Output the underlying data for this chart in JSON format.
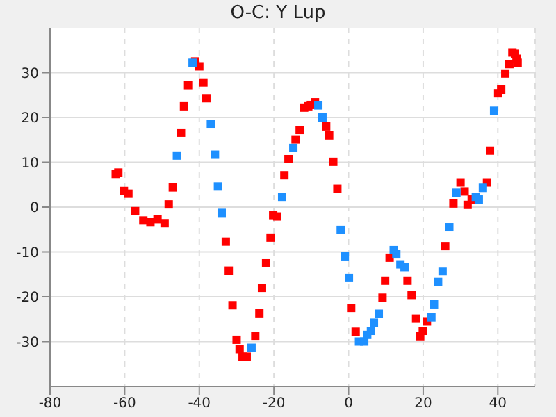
{
  "chart_data": {
    "type": "scatter",
    "title": "O-C: Y Lup",
    "xlim": [
      -80,
      50
    ],
    "ylim": [
      -40,
      40
    ],
    "xticks": [
      -80,
      -60,
      -40,
      -20,
      0,
      20,
      40
    ],
    "yticks": [
      -30,
      -20,
      -10,
      0,
      10,
      20,
      30
    ],
    "grid": true,
    "marker": "square",
    "series": [
      {
        "color": "#ff0000",
        "x": [
          -62.4,
          -61.7,
          -60.2,
          -59,
          -57.2,
          -55,
          -53.1,
          -51.2,
          -49.3,
          -48.2,
          -47.1,
          -44.9,
          -44.1,
          -43,
          -41.1,
          -40,
          -38.9,
          -38.1,
          -32.9,
          -32.1,
          -31.1,
          -30,
          -29.2,
          -28.4,
          -27.3,
          -25,
          -23.9,
          -23.2,
          -22.1,
          -20.9,
          -20.2,
          -19.1,
          -17.2,
          -16.1,
          -14.2,
          -13.1,
          -11.9,
          -10.8,
          -10.1,
          -9,
          -6,
          -5.2,
          -4.1,
          -3,
          0.7,
          1.9,
          9.1,
          9.8,
          11,
          15.8,
          16.9,
          18.1,
          19.2,
          19.9,
          21,
          25.9,
          28.1,
          30,
          31.1,
          31.9,
          33,
          37.1,
          37.9,
          40.1,
          40.9,
          42,
          43.1,
          43.9,
          44.6,
          45,
          45.3
        ],
        "values": [
          7.4,
          7.7,
          3.6,
          3,
          -0.9,
          -3,
          -3.3,
          -2.7,
          -3.6,
          0.6,
          4.4,
          16.6,
          22.5,
          27.2,
          32.5,
          31.4,
          27.8,
          24.3,
          -7.7,
          -14.2,
          -21.9,
          -29.6,
          -31.7,
          -33.4,
          -33.4,
          -28.7,
          -23.7,
          -18,
          -12.4,
          -6.8,
          -1.8,
          -2.1,
          7.1,
          10.7,
          15.1,
          17.2,
          22.2,
          22.5,
          22.8,
          23.4,
          18,
          16,
          10.1,
          4.1,
          -22.5,
          -27.8,
          -20.2,
          -16.4,
          -11.3,
          -16.4,
          -19.6,
          -24.9,
          -28.8,
          -27.6,
          -25.5,
          -8.7,
          0.8,
          5.5,
          3.5,
          0.5,
          1.7,
          5.5,
          12.6,
          25.4,
          26.2,
          29.8,
          31.9,
          34.5,
          34.2,
          33.1,
          32.2
        ]
      },
      {
        "color": "#1e90ff",
        "x": [
          -46,
          -41.8,
          -36.9,
          -35.8,
          -35,
          -34,
          -26,
          -17.8,
          -14.8,
          -8.1,
          -7,
          -2.1,
          -1,
          0.1,
          2.8,
          4.2,
          5,
          6,
          6.8,
          8.1,
          12.1,
          12.8,
          13.9,
          15,
          22.2,
          22.9,
          24,
          25.2,
          27,
          28.9,
          34.1,
          34.9,
          36,
          39
        ],
        "values": [
          11.5,
          32.2,
          18.6,
          11.7,
          4.6,
          -1.3,
          -31.4,
          2.3,
          13.2,
          22.7,
          20,
          -5.1,
          -11,
          -15.8,
          -30,
          -30,
          -28.5,
          -27.6,
          -25.8,
          -23.8,
          -9.6,
          -10.4,
          -12.8,
          -13.4,
          -24.6,
          -21.7,
          -16.7,
          -14.3,
          -4.5,
          3.2,
          2.3,
          1.7,
          4.3,
          21.5
        ]
      }
    ]
  }
}
